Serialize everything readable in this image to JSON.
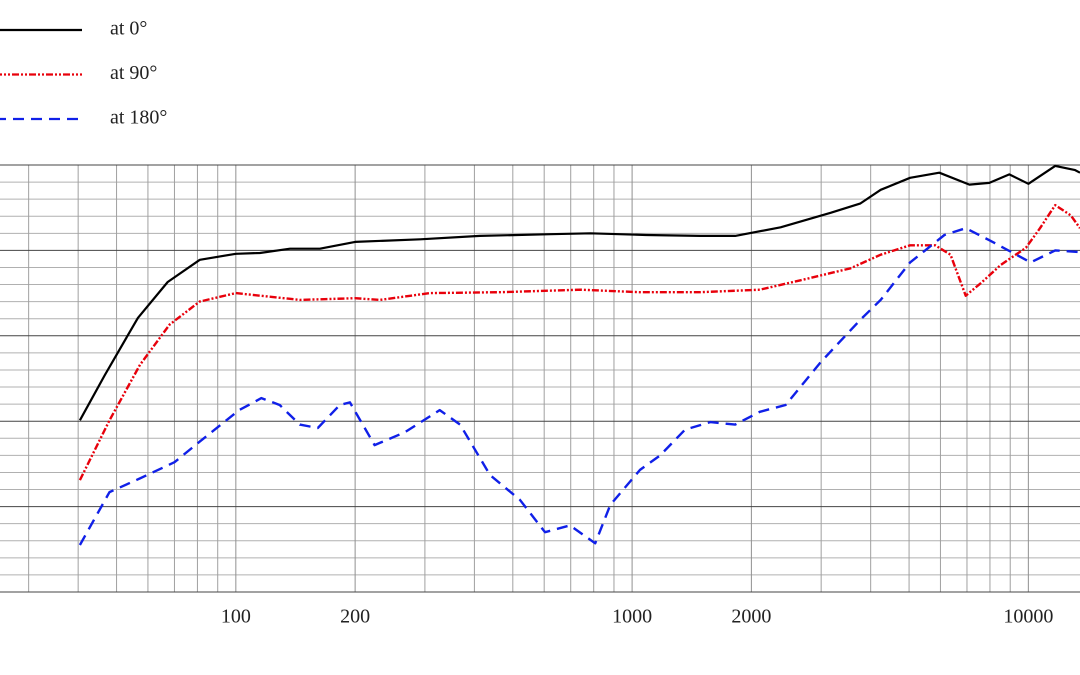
{
  "chart_data": {
    "type": "line",
    "xscale": "log",
    "xlim": [
      25.4,
      13500
    ],
    "xticks": [
      100,
      200,
      1000,
      2000,
      10000
    ],
    "xgrid": [
      30,
      40,
      50,
      60,
      70,
      80,
      90,
      300,
      400,
      500,
      600,
      700,
      800,
      900,
      3000,
      4000,
      5000,
      6000,
      7000,
      8000,
      9000
    ],
    "ylim": [
      0,
      50
    ],
    "yticks": [
      0,
      10,
      20,
      30,
      40,
      50
    ],
    "yminor": [
      2,
      4,
      6,
      8,
      12,
      14,
      16,
      18,
      22,
      24,
      26,
      28,
      32,
      34,
      36,
      38,
      42,
      44,
      46,
      48
    ],
    "grid": true,
    "legend": "top-left",
    "series": [
      {
        "name": "at 0°",
        "color": "#000000",
        "dash": "solid",
        "x": [
          40.4,
          46.7,
          56.6,
          67.3,
          81.1,
          100,
          115,
          137,
          163,
          200,
          292,
          413,
          622,
          785,
          1085,
          1485,
          1820,
          2370,
          3170,
          3770,
          4240,
          5030,
          5960,
          7100,
          7970,
          8950,
          10000,
          11690,
          13120,
          13500
        ],
        "values": [
          20.1,
          25.4,
          32.1,
          36.3,
          38.9,
          39.6,
          39.7,
          40.2,
          40.2,
          41.0,
          41.3,
          41.7,
          41.9,
          42.0,
          41.8,
          41.7,
          41.7,
          42.7,
          44.4,
          45.5,
          47.1,
          48.5,
          49.1,
          47.7,
          47.9,
          48.9,
          47.8,
          49.9,
          49.4,
          49.1
        ]
      },
      {
        "name": "at 90°",
        "color": "#e8000b",
        "dash": "dashdotdot",
        "x": [
          40.4,
          48,
          57.3,
          68,
          81,
          100,
          145,
          200,
          231,
          309,
          465,
          741,
          1047,
          1485,
          2100,
          2660,
          3560,
          4240,
          5030,
          5820,
          6360,
          6950,
          7600,
          8520,
          9860,
          10700,
          11690,
          12800,
          13500
        ],
        "values": [
          13.1,
          20.1,
          26.6,
          31.3,
          34.0,
          35.0,
          34.2,
          34.4,
          34.2,
          35.0,
          35.1,
          35.4,
          35.1,
          35.1,
          35.4,
          36.5,
          37.9,
          39.5,
          40.6,
          40.6,
          39.5,
          34.7,
          36.2,
          38.3,
          40.3,
          42.6,
          45.3,
          44.1,
          42.6
        ]
      },
      {
        "name": "at 180°",
        "color": "#1020e8",
        "dash": "dashed",
        "x": [
          40.4,
          48,
          57.3,
          70,
          81,
          102,
          116,
          129,
          145,
          161,
          183,
          194,
          224,
          267,
          327,
          368,
          438,
          521,
          603,
          697,
          807,
          881,
          1047,
          1177,
          1360,
          1575,
          1820,
          2100,
          2440,
          2990,
          3770,
          4240,
          5030,
          6140,
          6950,
          7970,
          10140,
          11690,
          13500
        ],
        "values": [
          5.5,
          11.7,
          13.3,
          15.2,
          17.6,
          21.3,
          22.7,
          21.9,
          19.6,
          19.2,
          21.9,
          22.2,
          17.2,
          18.7,
          21.3,
          19.6,
          13.7,
          10.8,
          7.0,
          7.8,
          5.7,
          10.2,
          14.3,
          16.0,
          19.0,
          19.9,
          19.6,
          21.1,
          21.9,
          26.9,
          31.9,
          34.2,
          38.6,
          41.8,
          42.6,
          41.2,
          38.6,
          40.0,
          39.8
        ]
      }
    ]
  }
}
